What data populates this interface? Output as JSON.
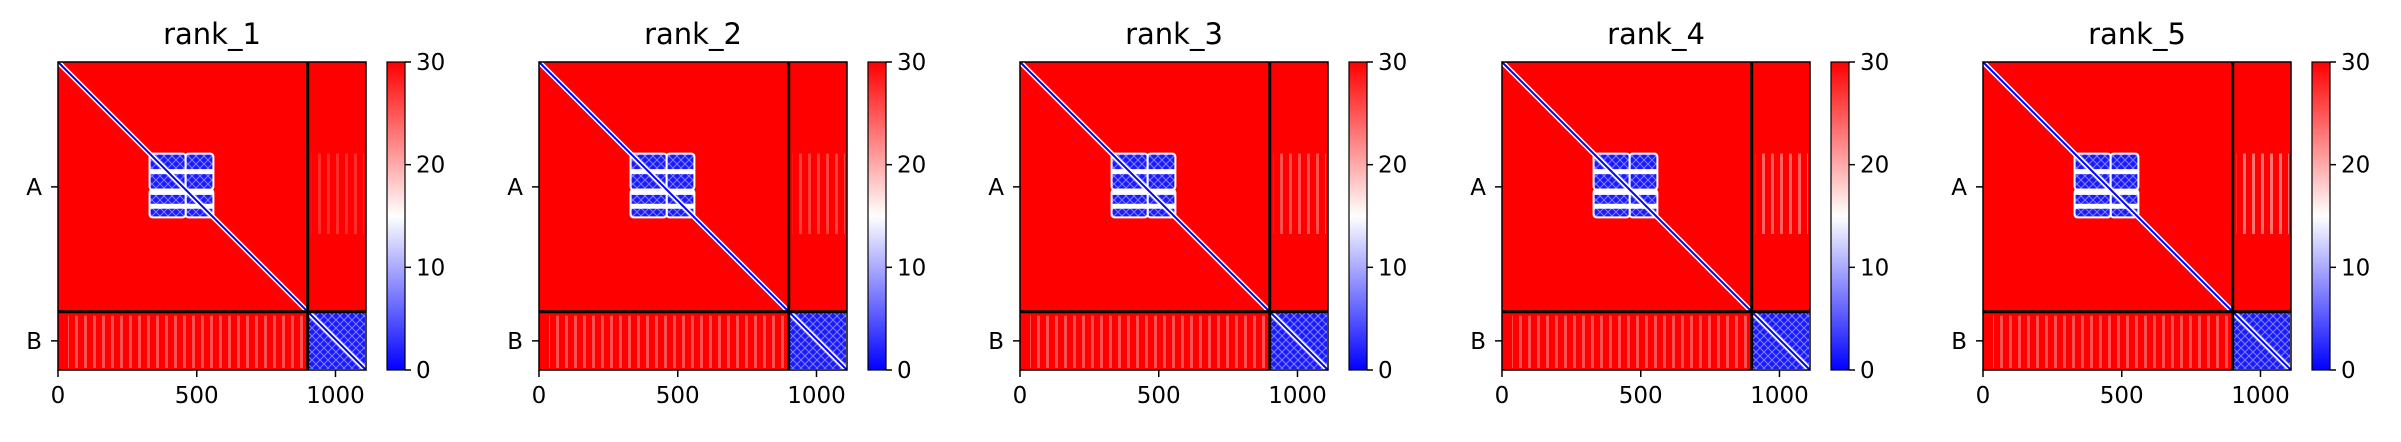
{
  "chart_data": [
    {
      "type": "heatmap",
      "title": "rank_1",
      "x_ticks": [
        0,
        500,
        1000
      ],
      "xlim": [
        0,
        1110
      ],
      "y_tick_labels": [
        "A",
        "B"
      ],
      "chain_boundary": 900,
      "colorbar": {
        "ticks": [
          0,
          10,
          20,
          30
        ],
        "range": [
          0,
          30
        ],
        "colors": [
          "#0000ff",
          "#ffffff",
          "#ff0000"
        ]
      },
      "blue_blocks": [
        [
          330,
          460,
          330,
          460
        ],
        [
          460,
          560,
          460,
          560
        ],
        [
          900,
          1110,
          900,
          1110
        ]
      ],
      "pae_B_to_A_region": "light"
    },
    {
      "type": "heatmap",
      "title": "rank_2",
      "x_ticks": [
        0,
        500,
        1000
      ],
      "xlim": [
        0,
        1110
      ],
      "y_tick_labels": [
        "A",
        "B"
      ],
      "chain_boundary": 900,
      "colorbar": {
        "ticks": [
          0,
          10,
          20,
          30
        ],
        "range": [
          0,
          30
        ],
        "colors": [
          "#0000ff",
          "#ffffff",
          "#ff0000"
        ]
      },
      "blue_blocks": [
        [
          330,
          460,
          330,
          460
        ],
        [
          460,
          560,
          460,
          560
        ],
        [
          900,
          1110,
          900,
          1110
        ]
      ],
      "pae_B_to_A_region": "light"
    },
    {
      "type": "heatmap",
      "title": "rank_3",
      "x_ticks": [
        0,
        500,
        1000
      ],
      "xlim": [
        0,
        1110
      ],
      "y_tick_labels": [
        "A",
        "B"
      ],
      "chain_boundary": 900,
      "colorbar": {
        "ticks": [
          0,
          10,
          20,
          30
        ],
        "range": [
          0,
          30
        ],
        "colors": [
          "#0000ff",
          "#ffffff",
          "#ff0000"
        ]
      },
      "blue_blocks": [
        [
          330,
          460,
          330,
          460
        ],
        [
          460,
          560,
          460,
          560
        ],
        [
          900,
          1110,
          900,
          1110
        ]
      ],
      "pae_B_to_A_region": "light"
    },
    {
      "type": "heatmap",
      "title": "rank_4",
      "x_ticks": [
        0,
        500,
        1000
      ],
      "xlim": [
        0,
        1110
      ],
      "y_tick_labels": [
        "A",
        "B"
      ],
      "chain_boundary": 900,
      "colorbar": {
        "ticks": [
          0,
          10,
          20,
          30
        ],
        "range": [
          0,
          30
        ],
        "colors": [
          "#0000ff",
          "#ffffff",
          "#ff0000"
        ]
      },
      "blue_blocks": [
        [
          330,
          460,
          330,
          460
        ],
        [
          460,
          560,
          460,
          560
        ],
        [
          900,
          1110,
          900,
          1110
        ]
      ],
      "pae_B_to_A_region": "light"
    },
    {
      "type": "heatmap",
      "title": "rank_5",
      "x_ticks": [
        0,
        500,
        1000
      ],
      "xlim": [
        0,
        1110
      ],
      "y_tick_labels": [
        "A",
        "B"
      ],
      "chain_boundary": 900,
      "colorbar": {
        "ticks": [
          0,
          10,
          20,
          30
        ],
        "range": [
          0,
          30
        ],
        "colors": [
          "#0000ff",
          "#ffffff",
          "#ff0000"
        ]
      },
      "blue_blocks": [
        [
          330,
          460,
          330,
          460
        ],
        [
          460,
          560,
          460,
          560
        ],
        [
          900,
          1110,
          900,
          1110
        ]
      ],
      "pae_B_to_A_region": "light"
    }
  ]
}
